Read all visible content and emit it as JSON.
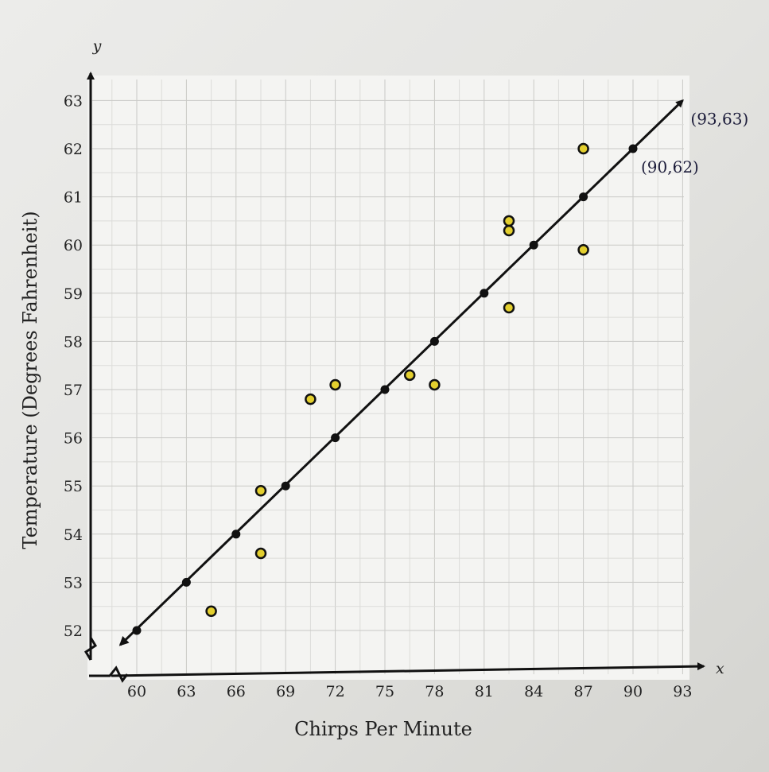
{
  "chart_data": {
    "type": "scatter",
    "xlabel": "Chirps Per Minute",
    "ylabel": "Temperature (Degrees Fahrenheit)",
    "x_axis_letter": "x",
    "y_axis_letter": "y",
    "x_ticks": [
      60,
      63,
      66,
      69,
      72,
      75,
      78,
      81,
      84,
      87,
      90,
      93
    ],
    "y_ticks": [
      52,
      53,
      54,
      55,
      56,
      57,
      58,
      59,
      60,
      61,
      62,
      63
    ],
    "xlim": [
      57,
      94
    ],
    "ylim": [
      51.2,
      63.2
    ],
    "grid": true,
    "observed": {
      "color": "#e3cf2e",
      "points": [
        {
          "x": 64.5,
          "y": 52.4
        },
        {
          "x": 67.5,
          "y": 53.6
        },
        {
          "x": 67.5,
          "y": 54.9
        },
        {
          "x": 70.5,
          "y": 56.8
        },
        {
          "x": 72.0,
          "y": 57.1
        },
        {
          "x": 76.5,
          "y": 57.3
        },
        {
          "x": 78.0,
          "y": 57.1
        },
        {
          "x": 82.5,
          "y": 58.7
        },
        {
          "x": 82.5,
          "y": 60.3
        },
        {
          "x": 82.5,
          "y": 60.5
        },
        {
          "x": 87.0,
          "y": 59.9
        },
        {
          "x": 87.0,
          "y": 62.0
        }
      ]
    },
    "trend_line": {
      "color": "#111111",
      "start": {
        "x": 59,
        "y": 51.7
      },
      "end": {
        "x": 93,
        "y": 63
      },
      "points": [
        {
          "x": 60,
          "y": 52
        },
        {
          "x": 63,
          "y": 53
        },
        {
          "x": 66,
          "y": 54
        },
        {
          "x": 69,
          "y": 55
        },
        {
          "x": 72,
          "y": 56
        },
        {
          "x": 75,
          "y": 57
        },
        {
          "x": 78,
          "y": 58
        },
        {
          "x": 81,
          "y": 59
        },
        {
          "x": 84,
          "y": 60
        },
        {
          "x": 87,
          "y": 61
        },
        {
          "x": 90,
          "y": 62
        }
      ]
    },
    "annotations": [
      {
        "text": "(93,63)",
        "x": 93,
        "y": 63
      },
      {
        "text": "(90,62)",
        "x": 90,
        "y": 62
      }
    ]
  }
}
